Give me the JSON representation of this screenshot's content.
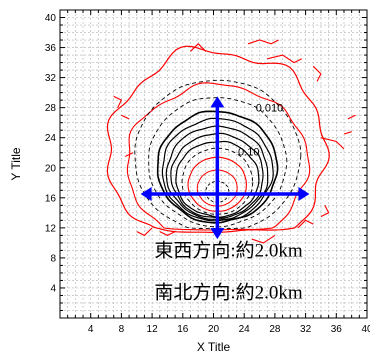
{
  "chart_data": {
    "type": "contour",
    "xlabel": "X Title",
    "ylabel": "Y Title",
    "xlim": [
      0,
      40
    ],
    "ylim": [
      0,
      41
    ],
    "x_ticks": [
      4,
      8,
      12,
      16,
      20,
      24,
      28,
      32,
      36,
      40
    ],
    "y_ticks": [
      4,
      8,
      12,
      16,
      20,
      24,
      28,
      32,
      36,
      40
    ],
    "grid": true,
    "contour_labels": [
      {
        "text": "0.010",
        "x": 25.5,
        "y": 27.5
      },
      {
        "text": "0.10",
        "x": 23.2,
        "y": 21.6
      }
    ],
    "center": {
      "x": 20.5,
      "y": 16.5
    },
    "arrows": {
      "color": "#0000ff",
      "x_range": [
        10.5,
        32.5
      ],
      "y_range": [
        10.5,
        29.5
      ]
    },
    "annotations": [
      {
        "text": "東西方向:約2.0km",
        "x": 12.3,
        "y": 8.2
      },
      {
        "text": "南北方向:約2.0km",
        "x": 12.3,
        "y": 2.6
      }
    ],
    "colors": {
      "red": "#ff0000",
      "black": "#000000",
      "blue": "#0000ff",
      "grid": "#b0b0b0"
    }
  }
}
